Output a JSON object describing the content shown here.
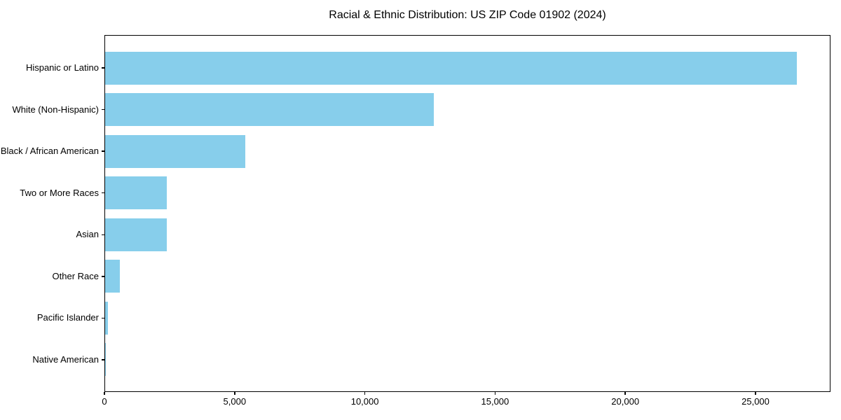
{
  "chart_data": {
    "type": "bar",
    "orientation": "horizontal",
    "title": "Racial & Ethnic Distribution: US ZIP Code 01902 (2024)",
    "categories": [
      "Hispanic or Latino",
      "White (Non-Hispanic)",
      "Black / African American",
      "Two or More Races",
      "Asian",
      "Other Race",
      "Pacific Islander",
      "Native American"
    ],
    "values": [
      26560,
      12620,
      5390,
      2380,
      2370,
      570,
      100,
      20
    ],
    "xlabel": "",
    "ylabel": "",
    "xlim": [
      0,
      27880
    ],
    "x_ticks": [
      0,
      5000,
      10000,
      15000,
      20000,
      25000
    ],
    "x_tick_labels": [
      "0",
      "5,000",
      "10,000",
      "15,000",
      "20,000",
      "25,000"
    ],
    "bar_color": "#87CEEB",
    "background_color": "#FFFFFF",
    "spine_color": "#000000",
    "grid": false,
    "legend": null
  }
}
